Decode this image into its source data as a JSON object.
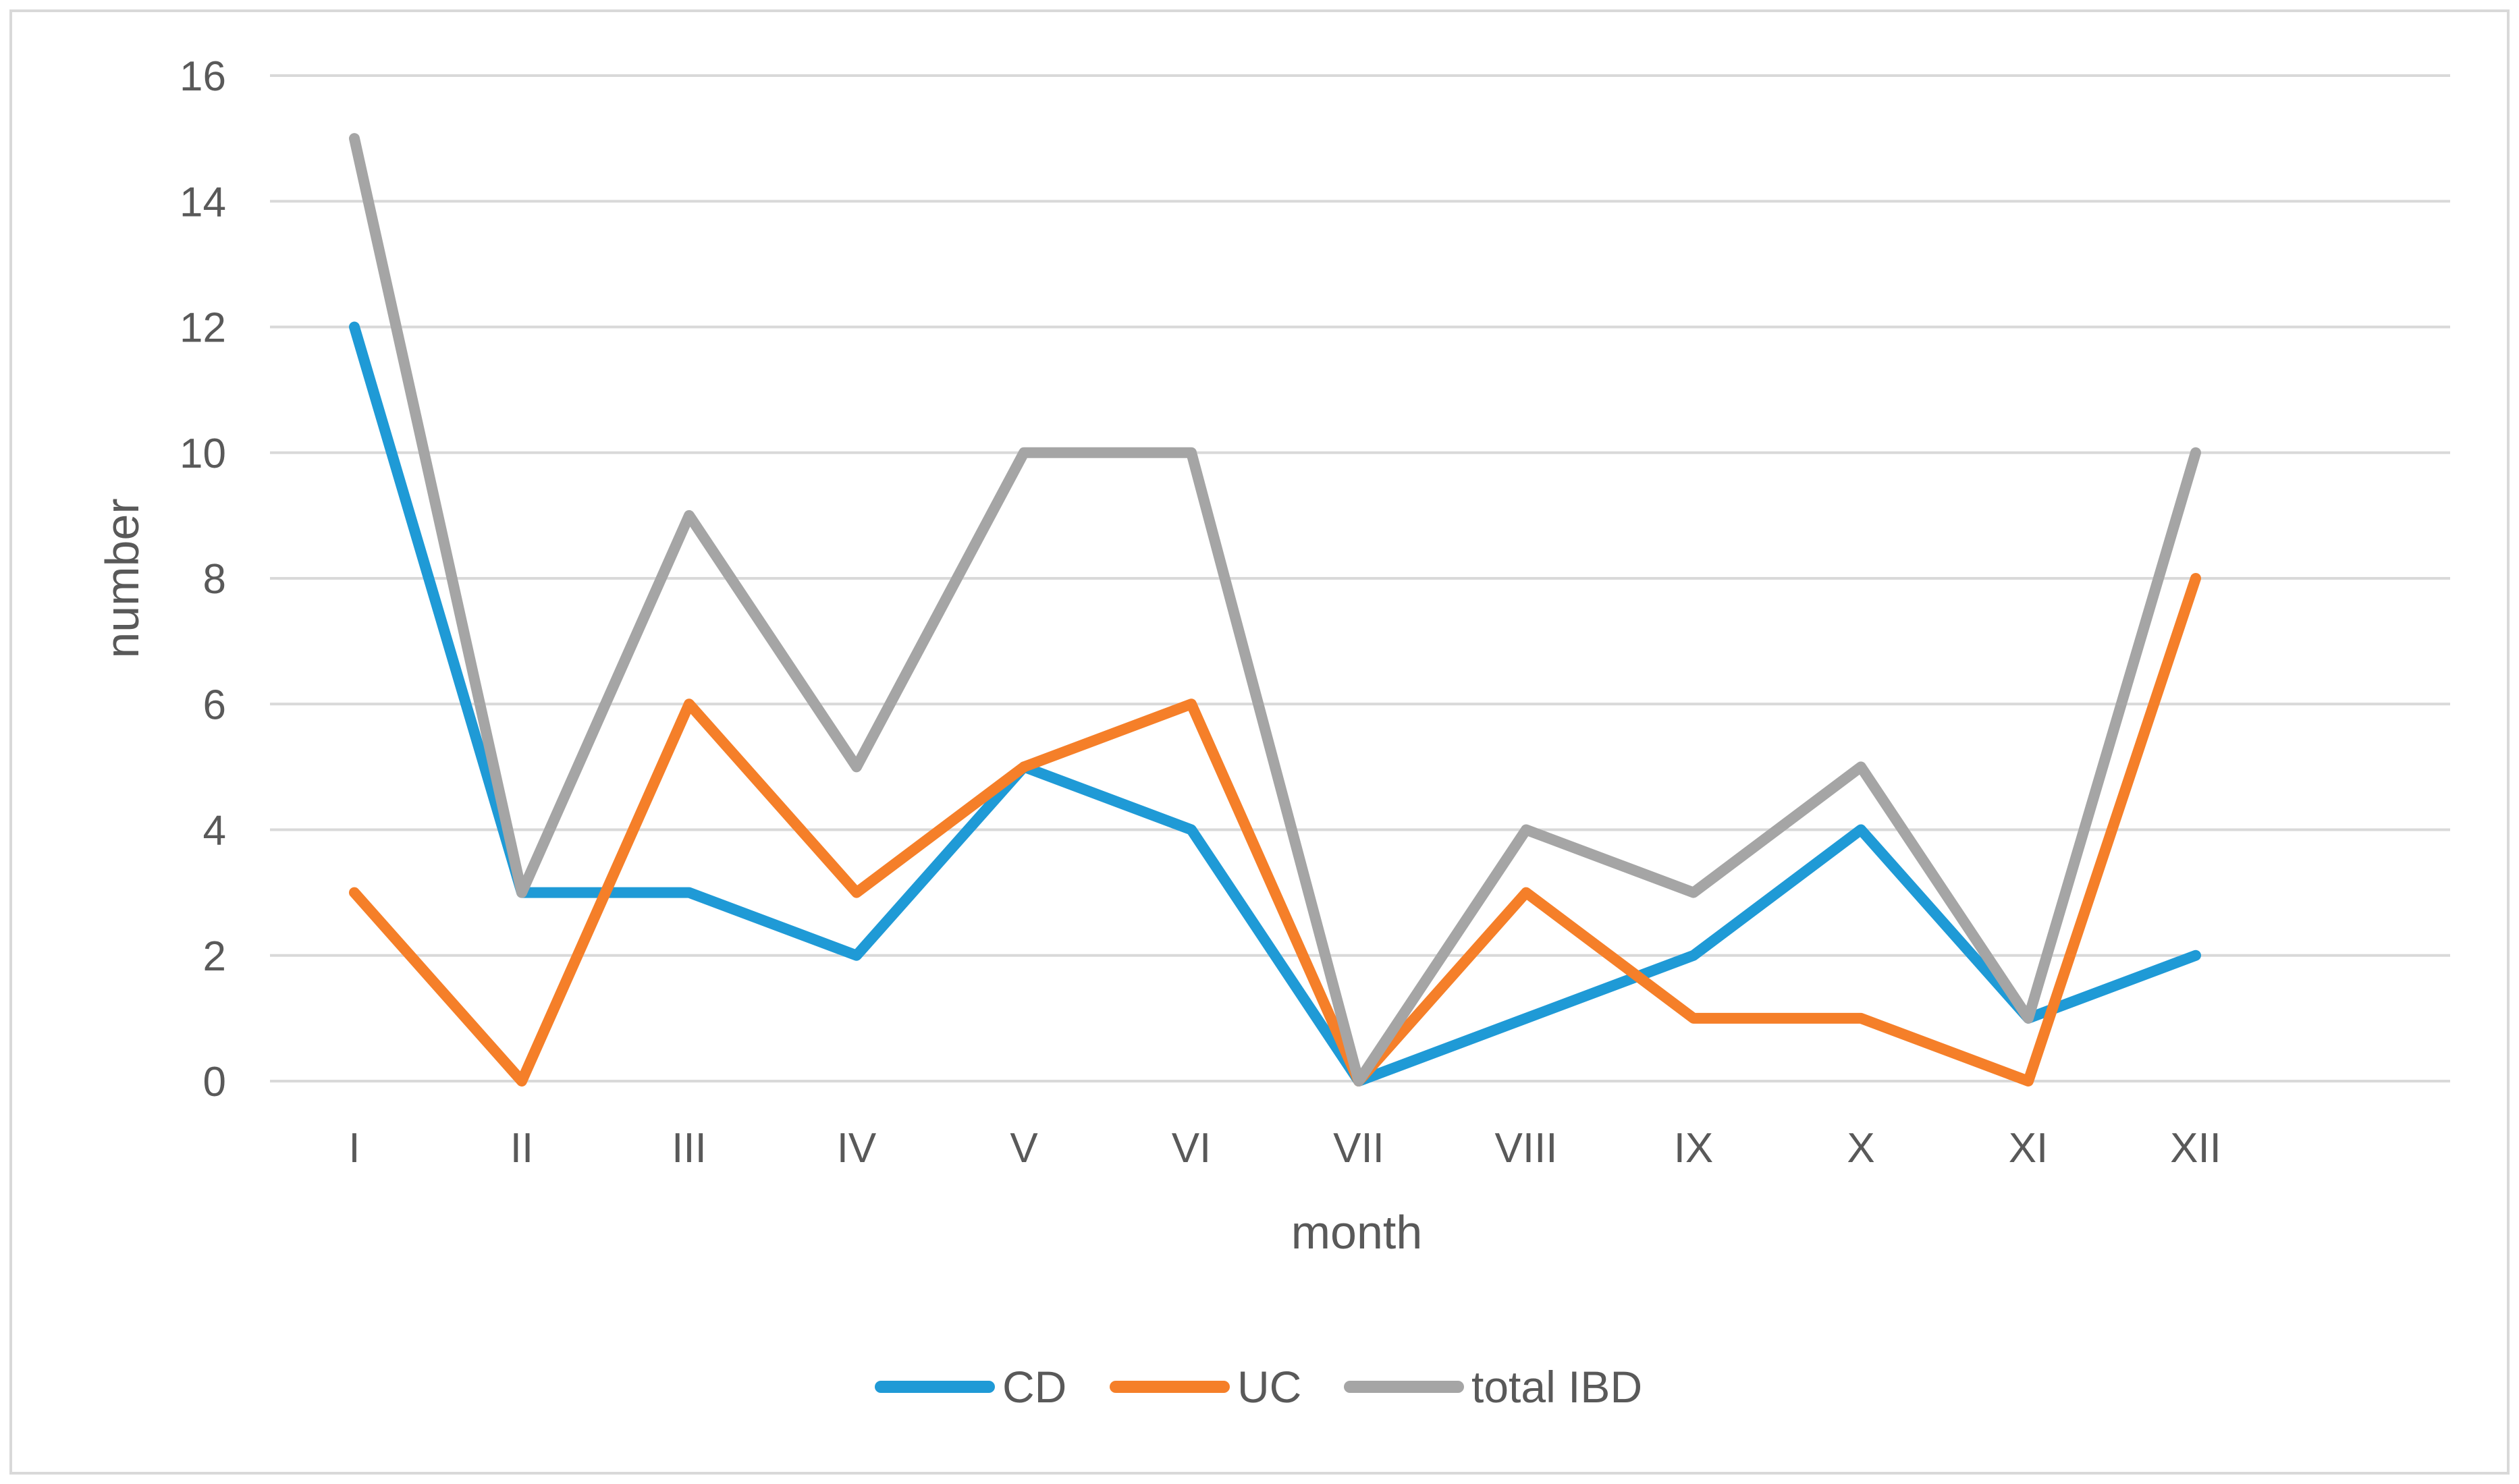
{
  "chart_data": {
    "type": "line",
    "title": "",
    "xlabel": "month",
    "ylabel": "number",
    "ylim": [
      0,
      16
    ],
    "yticks": [
      "0",
      "2",
      "4",
      "6",
      "8",
      "10",
      "12",
      "14",
      "16"
    ],
    "categories": [
      "I",
      "II",
      "III",
      "IV",
      "V",
      "VI",
      "VII",
      "VIII",
      "IX",
      "X",
      "XI",
      "XII"
    ],
    "grid": true,
    "legend_position": "bottom",
    "series": [
      {
        "name": "CD",
        "color": "#1f9ad6",
        "values": [
          12,
          3,
          3,
          2,
          5,
          4,
          0,
          1,
          2,
          4,
          1,
          2
        ]
      },
      {
        "name": "UC",
        "color": "#f57f29",
        "values": [
          3,
          0,
          6,
          3,
          5,
          6,
          0,
          3,
          1,
          1,
          0,
          8
        ]
      },
      {
        "name": "total IBD",
        "color": "#a5a5a5",
        "values": [
          15,
          3,
          9,
          5,
          10,
          10,
          0,
          4,
          3,
          5,
          1,
          10
        ]
      }
    ]
  }
}
